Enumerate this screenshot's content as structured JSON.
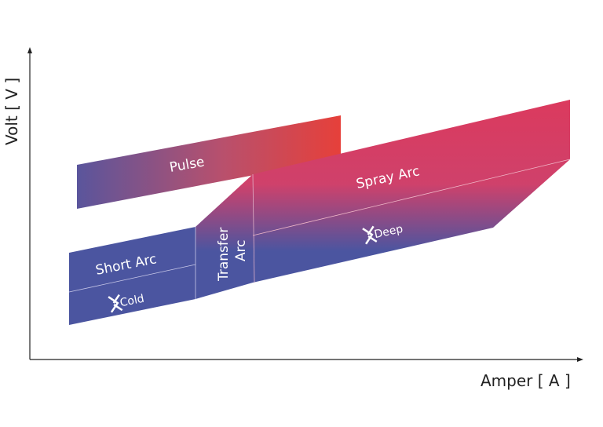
{
  "axes": {
    "y_label": "Volt [ V ]",
    "x_label": "Amper [ A ]"
  },
  "regions": {
    "pulse": "Pulse",
    "short_arc": "Short Arc",
    "cold": "Cold",
    "transfer_arc_line1": "Transfer",
    "transfer_arc_line2": "Arc",
    "spray_arc": "Spray Arc",
    "deep": "Deep"
  },
  "colors": {
    "blue": "#4b55a0",
    "magenta": "#d43f66",
    "red": "#e5403a"
  }
}
